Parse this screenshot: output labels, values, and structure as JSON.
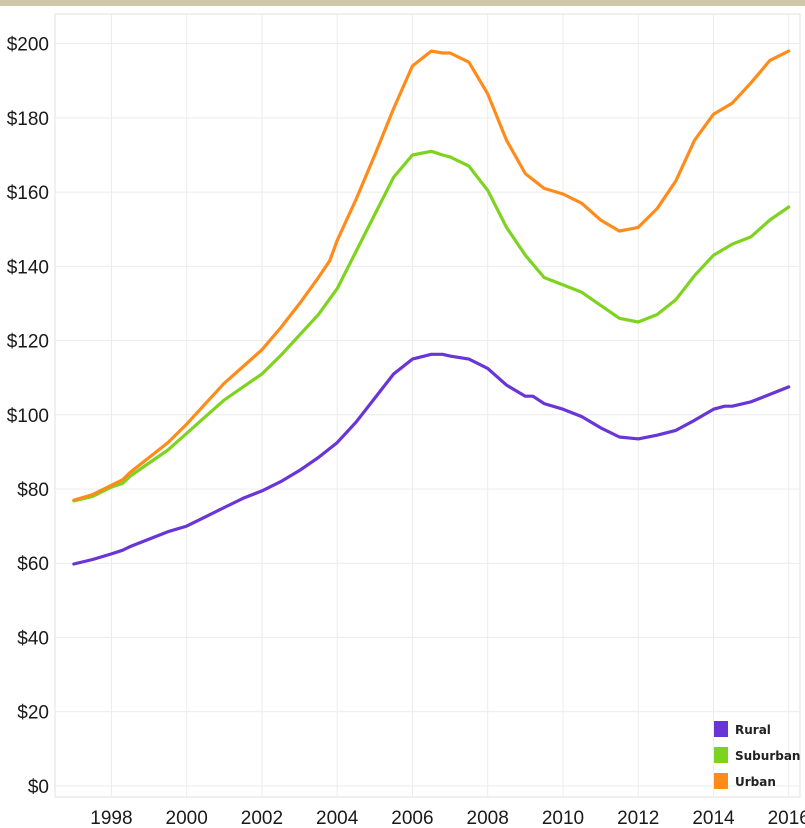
{
  "chart_data": {
    "type": "line",
    "title": "",
    "xlabel": "",
    "ylabel": "",
    "x_ticks": [
      "1998",
      "2000",
      "2002",
      "2004",
      "2006",
      "2008",
      "2010",
      "2012",
      "2014",
      "2016"
    ],
    "y_ticks": [
      "$0",
      "$20",
      "$40",
      "$60",
      "$80",
      "$100",
      "$120",
      "$140",
      "$160",
      "$180",
      "$200"
    ],
    "xlim": [
      1996.5,
      2016.3
    ],
    "ylim": [
      -3,
      208
    ],
    "grid": true,
    "legend_position": "bottom-right",
    "series": [
      {
        "name": "Rural",
        "color": "#6a35d6",
        "x": [
          1997.0,
          1997.5,
          1998.0,
          1998.3,
          1998.5,
          1999.0,
          1999.5,
          2000.0,
          2000.5,
          2001.0,
          2001.5,
          2002.0,
          2002.5,
          2003.0,
          2003.5,
          2004.0,
          2004.5,
          2005.0,
          2005.5,
          2006.0,
          2006.5,
          2006.8,
          2007.0,
          2007.5,
          2008.0,
          2008.5,
          2009.0,
          2009.2,
          2009.5,
          2010.0,
          2010.5,
          2011.0,
          2011.5,
          2012.0,
          2012.5,
          2013.0,
          2013.5,
          2014.0,
          2014.3,
          2014.5,
          2015.0,
          2015.5,
          2016.0
        ],
        "values": [
          59.8,
          61,
          62.5,
          63.5,
          64.5,
          66.5,
          68.5,
          70,
          72.5,
          75,
          77.5,
          79.5,
          82,
          85,
          88.5,
          92.5,
          98,
          104.5,
          111,
          115,
          116.3,
          116.3,
          115.8,
          115,
          112.5,
          108,
          105,
          105,
          103,
          101.5,
          99.5,
          96.5,
          94,
          93.5,
          94.5,
          95.8,
          98.5,
          101.5,
          102.3,
          102.3,
          103.5,
          105.5,
          107.5
        ]
      },
      {
        "name": "Suburban",
        "color": "#7ed321",
        "x": [
          1997.0,
          1997.5,
          1998.0,
          1998.3,
          1998.5,
          1999.0,
          1999.5,
          2000.0,
          2000.5,
          2001.0,
          2001.5,
          2002.0,
          2002.5,
          2003.0,
          2003.5,
          2004.0,
          2004.5,
          2005.0,
          2005.5,
          2006.0,
          2006.5,
          2006.8,
          2007.0,
          2007.5,
          2008.0,
          2008.5,
          2009.0,
          2009.5,
          2010.0,
          2010.5,
          2011.0,
          2011.5,
          2012.0,
          2012.5,
          2013.0,
          2013.5,
          2014.0,
          2014.5,
          2015.0,
          2015.5,
          2016.0
        ],
        "values": [
          76.8,
          78,
          80.5,
          81.5,
          83.5,
          87,
          90.5,
          95,
          99.5,
          104,
          107.5,
          111,
          116,
          121.5,
          127,
          134,
          144,
          154,
          164,
          170,
          171,
          170,
          169.5,
          167,
          160.5,
          150.5,
          143,
          137,
          135,
          133,
          129.5,
          126,
          125,
          127,
          131,
          137.5,
          143,
          146,
          148,
          152.5,
          156
        ]
      },
      {
        "name": "Urban",
        "color": "#ff8c1a",
        "x": [
          1997.0,
          1997.5,
          1998.0,
          1998.3,
          1998.5,
          1999.0,
          1999.5,
          2000.0,
          2000.5,
          2001.0,
          2001.5,
          2002.0,
          2002.5,
          2003.0,
          2003.5,
          2003.8,
          2004.0,
          2004.5,
          2005.0,
          2005.5,
          2006.0,
          2006.5,
          2006.8,
          2007.0,
          2007.5,
          2008.0,
          2008.5,
          2009.0,
          2009.5,
          2010.0,
          2010.5,
          2011.0,
          2011.5,
          2012.0,
          2012.5,
          2013.0,
          2013.5,
          2014.0,
          2014.5,
          2015.0,
          2015.5,
          2016.0
        ],
        "values": [
          77,
          78.5,
          81,
          82.5,
          84.5,
          88.5,
          92.5,
          97.5,
          103,
          108.5,
          113,
          117.5,
          123.5,
          130,
          137,
          141.5,
          147,
          158,
          170,
          182.5,
          194,
          198,
          197.5,
          197.5,
          195,
          186.5,
          174,
          165,
          161,
          159.5,
          157,
          152.5,
          149.5,
          150.5,
          155.5,
          163,
          174,
          181,
          184,
          189.5,
          195.5,
          198
        ]
      }
    ]
  }
}
